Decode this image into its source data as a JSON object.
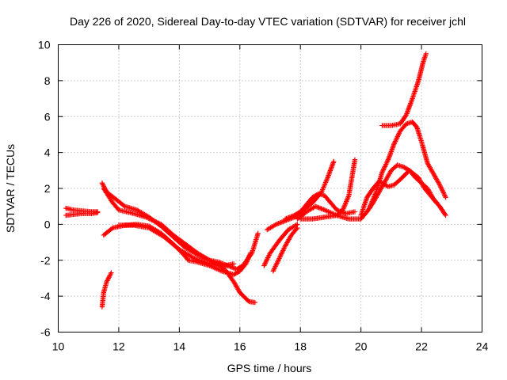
{
  "chart_data": {
    "type": "scatter",
    "title": "Day 226 of 2020, Sidereal Day-to-day VTEC variation (SDTVAR) for receiver jchl",
    "xlabel": "GPS time / hours",
    "ylabel": "SDTVAR / TECUs",
    "xlim": [
      10,
      24
    ],
    "ylim": [
      -6,
      10
    ],
    "xticks": [
      "10",
      "12",
      "14",
      "16",
      "18",
      "20",
      "22",
      "24"
    ],
    "yticks": [
      "-6",
      "-4",
      "-2",
      "0",
      "2",
      "4",
      "6",
      "8",
      "10"
    ],
    "grid": true,
    "marker": "plus",
    "color": "#ff0000",
    "series": [
      {
        "name": "arc-1",
        "points": [
          [
            10.25,
            0.9
          ],
          [
            10.5,
            0.8
          ],
          [
            10.8,
            0.75
          ],
          [
            11.1,
            0.7
          ],
          [
            11.3,
            0.7
          ]
        ]
      },
      {
        "name": "arc-2",
        "points": [
          [
            10.25,
            0.5
          ],
          [
            10.5,
            0.55
          ],
          [
            10.8,
            0.6
          ],
          [
            11.1,
            0.6
          ],
          [
            11.3,
            0.65
          ]
        ]
      },
      {
        "name": "arc-3",
        "points": [
          [
            11.45,
            -4.6
          ],
          [
            11.5,
            -3.8
          ],
          [
            11.6,
            -3.2
          ],
          [
            11.75,
            -2.7
          ]
        ]
      },
      {
        "name": "arc-4",
        "points": [
          [
            11.45,
            2.3
          ],
          [
            11.6,
            1.8
          ],
          [
            11.9,
            1.4
          ],
          [
            12.2,
            1.0
          ],
          [
            12.6,
            0.8
          ],
          [
            13.0,
            0.4
          ],
          [
            13.4,
            -0.1
          ],
          [
            13.8,
            -0.7
          ],
          [
            14.2,
            -1.3
          ],
          [
            14.6,
            -1.7
          ],
          [
            15.0,
            -2.0
          ],
          [
            15.3,
            -2.1
          ],
          [
            15.6,
            -2.3
          ],
          [
            15.9,
            -2.5
          ],
          [
            16.1,
            -2.3
          ],
          [
            16.4,
            -1.6
          ],
          [
            16.6,
            -0.5
          ]
        ]
      },
      {
        "name": "arc-5",
        "points": [
          [
            11.5,
            2.0
          ],
          [
            11.8,
            1.2
          ],
          [
            12.0,
            0.8
          ],
          [
            12.5,
            0.6
          ],
          [
            12.9,
            0.4
          ],
          [
            13.4,
            0.0
          ],
          [
            13.8,
            -0.6
          ],
          [
            14.2,
            -1.1
          ],
          [
            14.6,
            -1.6
          ],
          [
            15.0,
            -2.0
          ],
          [
            15.5,
            -2.5
          ],
          [
            15.8,
            -3.2
          ],
          [
            16.0,
            -3.8
          ],
          [
            16.3,
            -4.3
          ],
          [
            16.5,
            -4.35
          ]
        ]
      },
      {
        "name": "arc-6",
        "points": [
          [
            11.5,
            -0.6
          ],
          [
            11.8,
            -0.2
          ],
          [
            12.2,
            -0.05
          ],
          [
            12.6,
            0.0
          ],
          [
            13.0,
            -0.1
          ],
          [
            13.4,
            -0.5
          ],
          [
            13.8,
            -1.1
          ],
          [
            14.1,
            -1.6
          ],
          [
            14.3,
            -2.0
          ],
          [
            14.6,
            -2.1
          ],
          [
            15.0,
            -2.3
          ],
          [
            15.4,
            -2.6
          ],
          [
            15.8,
            -2.8
          ],
          [
            16.0,
            -2.6
          ],
          [
            16.2,
            -2.2
          ],
          [
            16.35,
            -1.6
          ]
        ]
      },
      {
        "name": "arc-7",
        "points": [
          [
            12.0,
            -0.05
          ],
          [
            12.5,
            -0.05
          ],
          [
            13.0,
            -0.2
          ],
          [
            13.5,
            -0.7
          ],
          [
            14.0,
            -1.4
          ],
          [
            14.5,
            -1.9
          ],
          [
            15.0,
            -2.2
          ],
          [
            15.5,
            -2.3
          ],
          [
            15.8,
            -2.2
          ]
        ]
      },
      {
        "name": "arc-8",
        "points": [
          [
            16.8,
            -2.3
          ],
          [
            17.0,
            -1.6
          ],
          [
            17.3,
            -0.9
          ],
          [
            17.6,
            -0.3
          ],
          [
            17.9,
            0.0
          ]
        ]
      },
      {
        "name": "arc-9",
        "points": [
          [
            17.1,
            -2.6
          ],
          [
            17.3,
            -1.9
          ],
          [
            17.5,
            -1.2
          ],
          [
            17.7,
            -0.6
          ],
          [
            17.9,
            -0.2
          ]
        ]
      },
      {
        "name": "arc-10",
        "points": [
          [
            16.9,
            -0.3
          ],
          [
            17.2,
            0.0
          ],
          [
            17.5,
            0.2
          ],
          [
            17.8,
            0.4
          ],
          [
            18.1,
            0.8
          ],
          [
            18.4,
            1.2
          ],
          [
            18.7,
            1.8
          ],
          [
            18.9,
            2.6
          ],
          [
            19.1,
            3.5
          ]
        ]
      },
      {
        "name": "arc-11",
        "points": [
          [
            17.5,
            0.3
          ],
          [
            17.8,
            0.5
          ],
          [
            18.0,
            0.7
          ],
          [
            18.2,
            1.1
          ],
          [
            18.4,
            1.5
          ],
          [
            18.6,
            1.7
          ],
          [
            18.8,
            1.6
          ],
          [
            19.0,
            1.2
          ],
          [
            19.2,
            0.8
          ],
          [
            19.5,
            0.6
          ],
          [
            19.8,
            0.7
          ]
        ]
      },
      {
        "name": "arc-12",
        "points": [
          [
            18.0,
            0.3
          ],
          [
            18.4,
            0.3
          ],
          [
            18.8,
            0.4
          ],
          [
            19.2,
            0.5
          ],
          [
            19.4,
            0.8
          ],
          [
            19.6,
            1.6
          ],
          [
            19.7,
            2.6
          ],
          [
            19.8,
            3.6
          ]
        ]
      },
      {
        "name": "arc-13",
        "points": [
          [
            17.9,
            0.3
          ],
          [
            18.2,
            0.7
          ],
          [
            18.5,
            1.0
          ],
          [
            18.8,
            0.8
          ],
          [
            19.2,
            0.5
          ],
          [
            19.6,
            0.3
          ],
          [
            20.0,
            0.3
          ],
          [
            20.2,
            0.7
          ],
          [
            20.4,
            1.2
          ],
          [
            20.6,
            1.8
          ],
          [
            20.8,
            2.4
          ],
          [
            21.0,
            3.0
          ],
          [
            21.2,
            3.3
          ],
          [
            21.4,
            3.2
          ],
          [
            21.6,
            3.0
          ],
          [
            21.8,
            2.6
          ],
          [
            22.0,
            2.3
          ],
          [
            22.2,
            2.0
          ],
          [
            22.4,
            1.4
          ],
          [
            22.6,
            1.0
          ],
          [
            22.8,
            0.5
          ]
        ]
      },
      {
        "name": "arc-14",
        "points": [
          [
            20.0,
            0.5
          ],
          [
            20.2,
            1.5
          ],
          [
            20.4,
            2.0
          ],
          [
            20.6,
            2.4
          ],
          [
            20.9,
            2.1
          ],
          [
            21.1,
            2.2
          ],
          [
            21.3,
            2.5
          ],
          [
            21.6,
            3.0
          ],
          [
            21.9,
            2.6
          ],
          [
            22.1,
            2.0
          ],
          [
            22.3,
            1.6
          ],
          [
            22.5,
            1.2
          ]
        ]
      },
      {
        "name": "arc-15",
        "points": [
          [
            20.3,
            1.0
          ],
          [
            20.5,
            1.8
          ],
          [
            20.7,
            2.9
          ],
          [
            20.9,
            3.6
          ],
          [
            21.1,
            4.5
          ],
          [
            21.3,
            5.2
          ],
          [
            21.5,
            5.6
          ],
          [
            21.7,
            5.7
          ],
          [
            21.85,
            5.4
          ],
          [
            22.0,
            4.6
          ],
          [
            22.2,
            3.4
          ],
          [
            22.4,
            2.8
          ],
          [
            22.6,
            2.2
          ],
          [
            22.8,
            1.5
          ]
        ]
      },
      {
        "name": "arc-16",
        "points": [
          [
            20.7,
            5.5
          ],
          [
            21.0,
            5.5
          ],
          [
            21.3,
            5.6
          ],
          [
            21.5,
            6.1
          ],
          [
            21.7,
            7.0
          ],
          [
            21.9,
            8.0
          ],
          [
            22.05,
            9.0
          ],
          [
            22.15,
            9.5
          ]
        ]
      }
    ]
  }
}
